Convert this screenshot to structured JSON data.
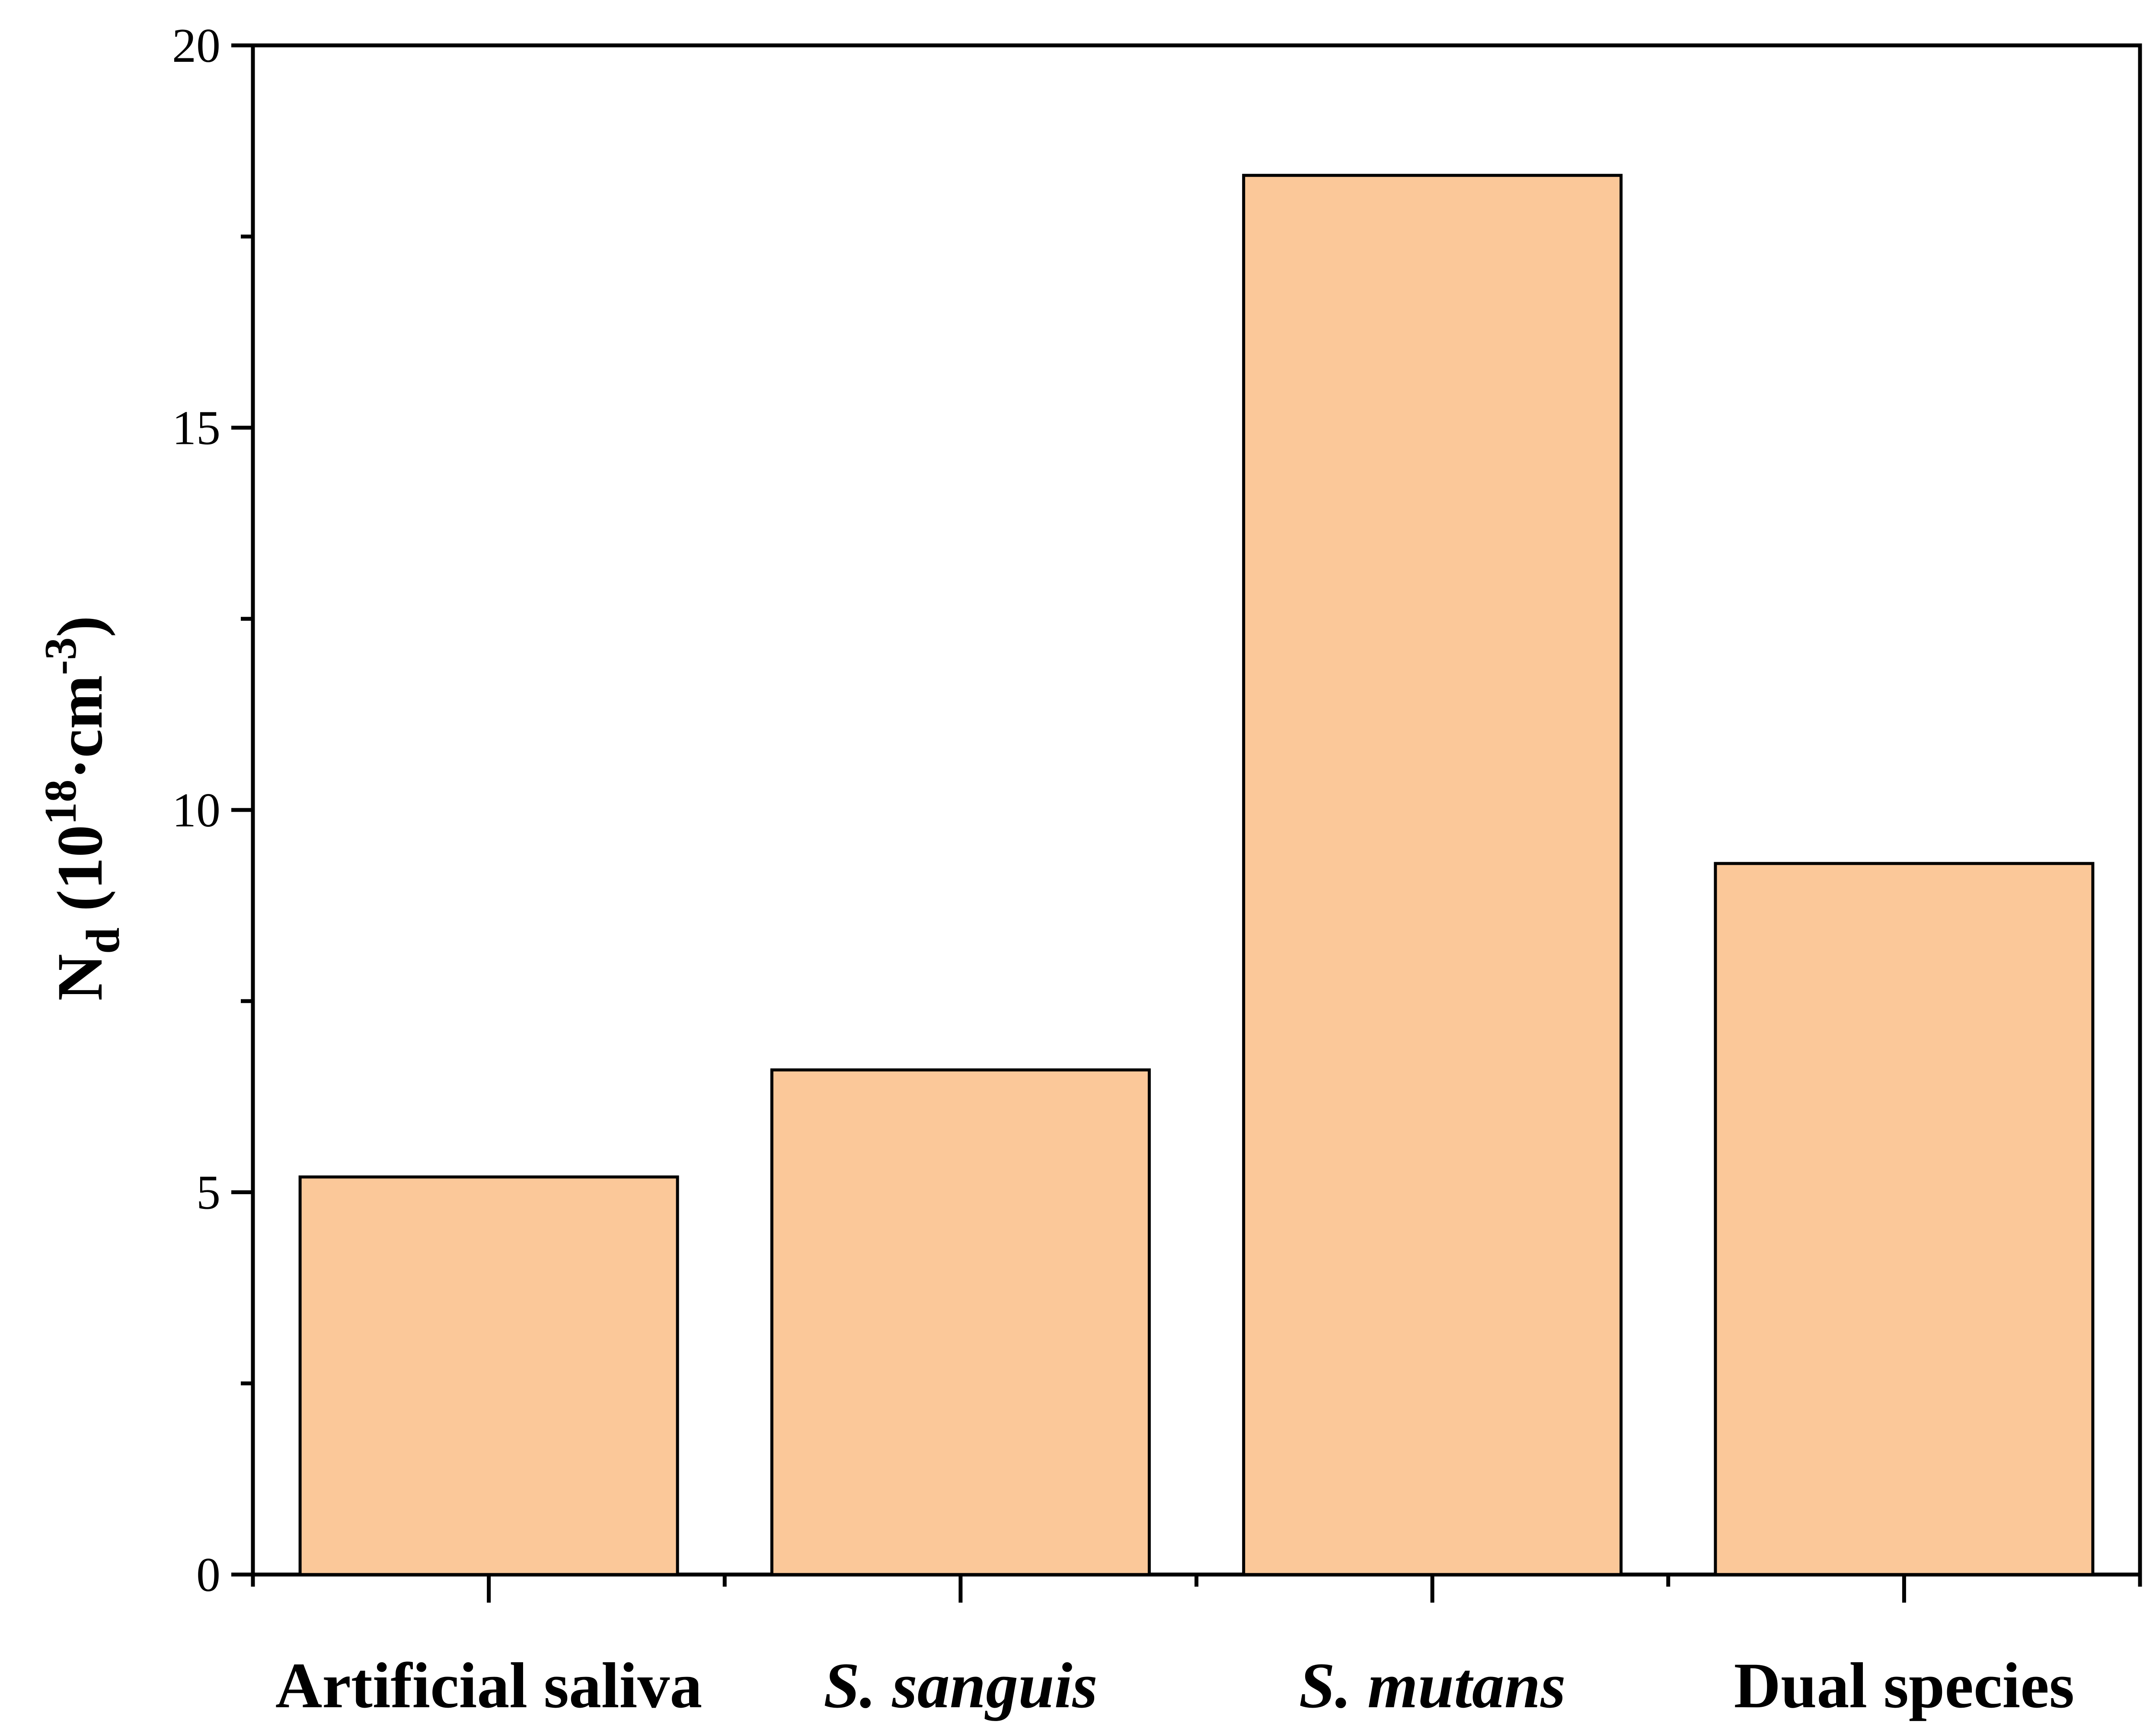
{
  "chart_data": {
    "type": "bar",
    "categories": [
      "Artificial saliva",
      "S. sanguis",
      "S. mutans",
      "Dual species"
    ],
    "category_italic": [
      false,
      true,
      true,
      false
    ],
    "values": [
      5.2,
      6.6,
      18.3,
      9.3
    ],
    "ylabel": {
      "main": "N",
      "sub": "d",
      "prefix": " (10",
      "exp1": "18",
      "mid": "·cm",
      "exp2": "-3",
      "suffix": ")"
    },
    "xlabel": "",
    "ylim": [
      0,
      20
    ],
    "yticks": [
      "0",
      "5",
      "10",
      "15",
      "20"
    ],
    "grid": false,
    "bar_color": "#fbc899",
    "bar_edge_color": "#000000"
  }
}
